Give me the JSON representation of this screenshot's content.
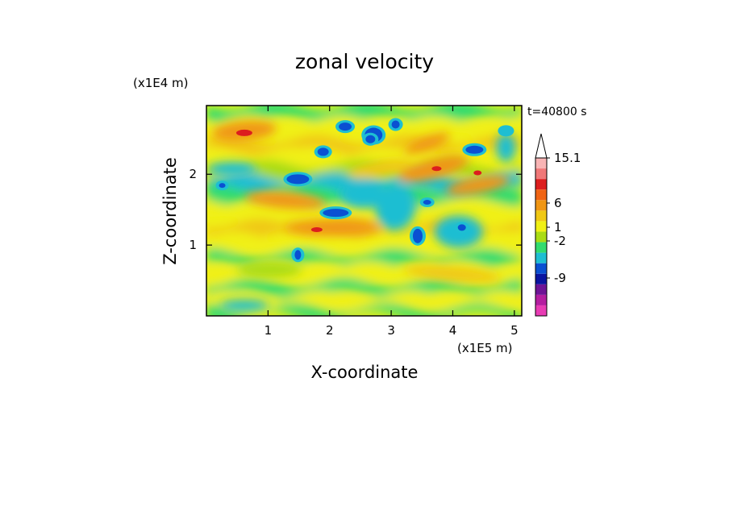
{
  "chart_data": {
    "type": "heatmap",
    "title": "zonal velocity",
    "xlabel": "X-coordinate",
    "ylabel": "Z-coordinate",
    "x_unit": "(x1E5 m)",
    "y_unit": "(x1E4 m)",
    "time_label": "t=40800 s",
    "xlim": [
      0,
      5.12
    ],
    "ylim": [
      0,
      2.97
    ],
    "xticks": [
      "1",
      "2",
      "3",
      "4",
      "5"
    ],
    "yticks": [
      "1",
      "2"
    ],
    "colorbar": {
      "tick_labels": [
        "15.1",
        "6",
        "1",
        "-2",
        "-9"
      ],
      "colors": [
        "#e83cb4",
        "#b41ea0",
        "#6e1496",
        "#0a14a0",
        "#0a50d2",
        "#1ebed2",
        "#32dc6e",
        "#aadc14",
        "#f0f014",
        "#f0c814",
        "#f09614",
        "#f06414",
        "#dc1e1e",
        "#f07878",
        "#f8b4b4"
      ],
      "extend": "max"
    }
  }
}
